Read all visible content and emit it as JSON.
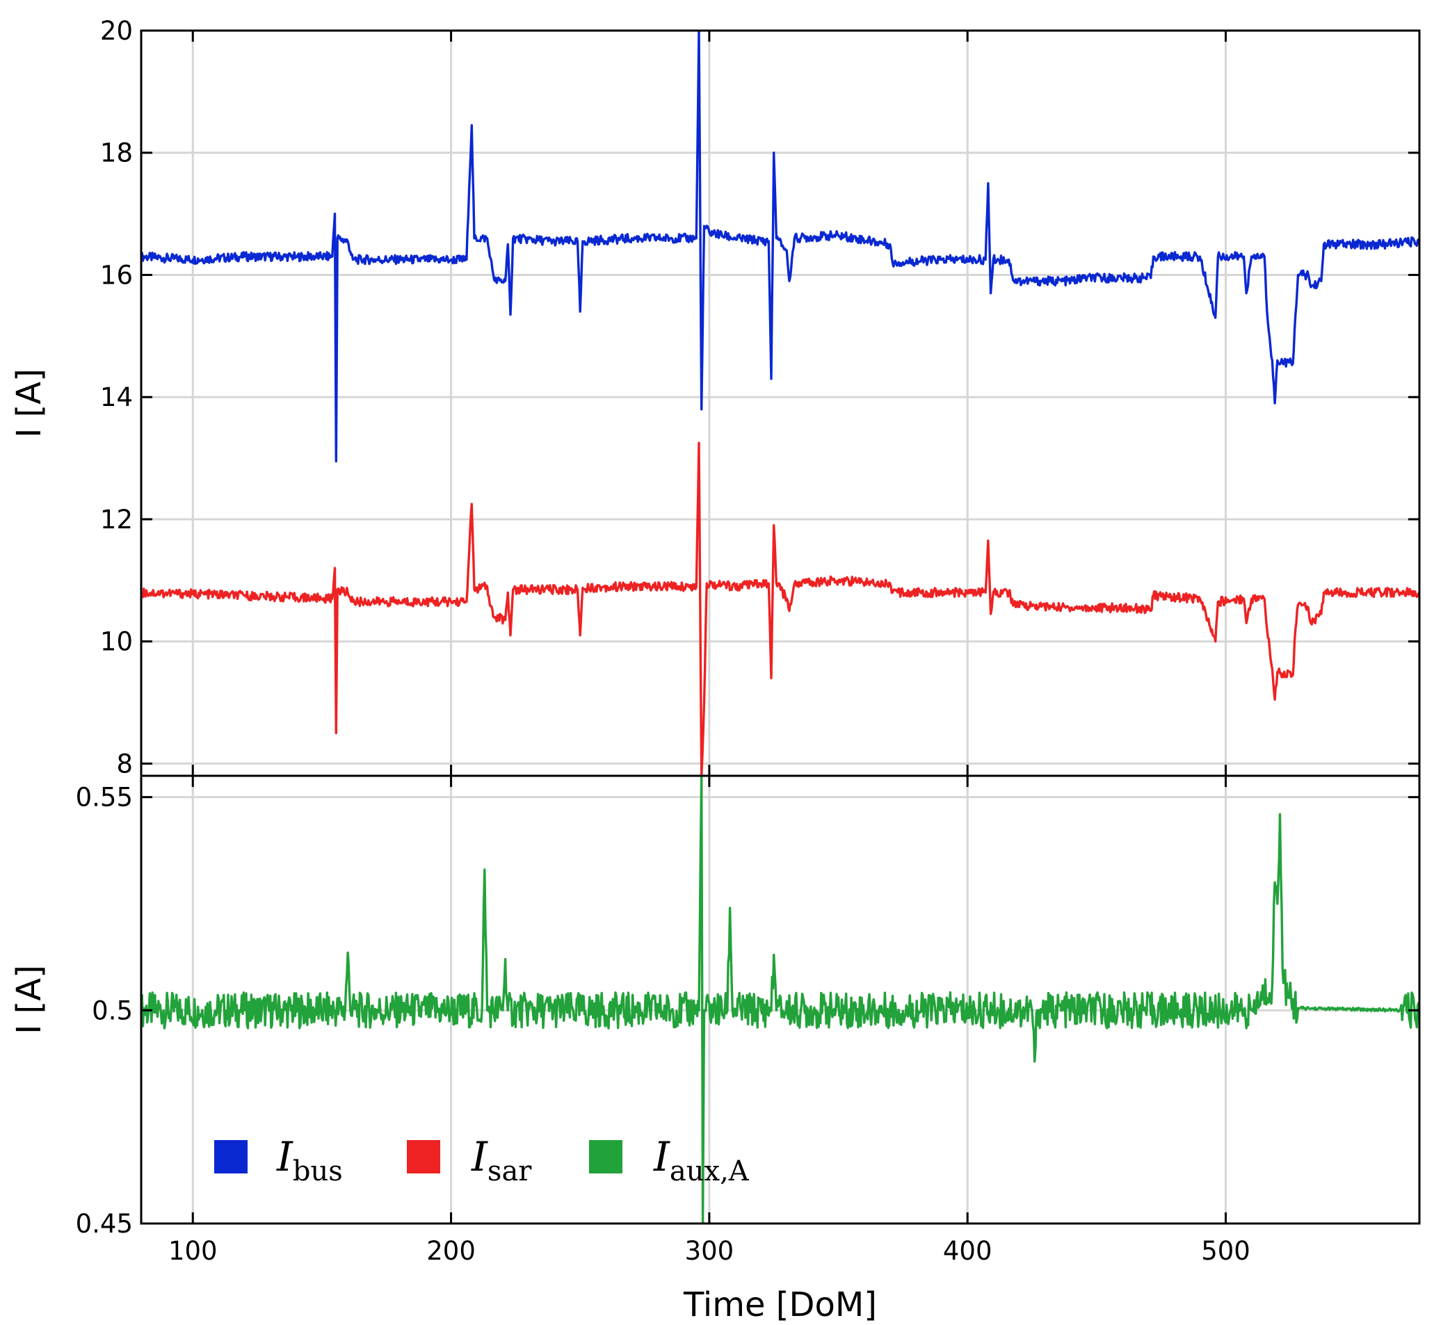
{
  "chart_data": [
    {
      "type": "line",
      "panel": "top",
      "ylabel": "I [A]",
      "ylim": [
        7.8,
        20
      ],
      "yticks": [
        "8",
        "10",
        "12",
        "14",
        "16",
        "18",
        "20"
      ],
      "xlim": [
        80,
        575
      ],
      "grid": true,
      "series": [
        {
          "id": "bus",
          "color": "#0a28d2",
          "points": [
            [
              80,
              16.3
            ],
            [
              100,
              16.25
            ],
            [
              120,
              16.3
            ],
            [
              140,
              16.3
            ],
            [
              150,
              16.3
            ],
            [
              154,
              16.3
            ],
            [
              155,
              17.0
            ],
            [
              155.5,
              12.95
            ],
            [
              156,
              16.6
            ],
            [
              160,
              16.55
            ],
            [
              162,
              16.25
            ],
            [
              180,
              16.25
            ],
            [
              200,
              16.25
            ],
            [
              206,
              16.25
            ],
            [
              207,
              17.4
            ],
            [
              208,
              18.45
            ],
            [
              209,
              16.6
            ],
            [
              214,
              16.6
            ],
            [
              215,
              16.3
            ],
            [
              217,
              15.9
            ],
            [
              221,
              15.9
            ],
            [
              222,
              16.5
            ],
            [
              223,
              15.35
            ],
            [
              224,
              16.6
            ],
            [
              240,
              16.55
            ],
            [
              249,
              16.55
            ],
            [
              250,
              15.4
            ],
            [
              251,
              16.55
            ],
            [
              270,
              16.6
            ],
            [
              295,
              16.6
            ],
            [
              296,
              20
            ],
            [
              297,
              13.8
            ],
            [
              298,
              16.8
            ],
            [
              300,
              16.7
            ],
            [
              310,
              16.6
            ],
            [
              323,
              16.55
            ],
            [
              324,
              14.3
            ],
            [
              325,
              18.0
            ],
            [
              326,
              16.6
            ],
            [
              330,
              16.4
            ],
            [
              331,
              15.9
            ],
            [
              333,
              16.6
            ],
            [
              350,
              16.65
            ],
            [
              370,
              16.5
            ],
            [
              371,
              16.2
            ],
            [
              390,
              16.25
            ],
            [
              407,
              16.25
            ],
            [
              408,
              17.5
            ],
            [
              409,
              15.7
            ],
            [
              410,
              16.25
            ],
            [
              416,
              16.25
            ],
            [
              418,
              15.9
            ],
            [
              440,
              15.9
            ],
            [
              445,
              15.95
            ],
            [
              465,
              15.95
            ],
            [
              471,
              15.95
            ],
            [
              472,
              16.3
            ],
            [
              490,
              16.3
            ],
            [
              496,
              15.3
            ],
            [
              497,
              16.3
            ],
            [
              507,
              16.3
            ],
            [
              508,
              15.7
            ],
            [
              510,
              16.3
            ],
            [
              515,
              16.3
            ],
            [
              516,
              15.4
            ],
            [
              518,
              14.6
            ],
            [
              519,
              13.9
            ],
            [
              520,
              14.6
            ],
            [
              526,
              14.55
            ],
            [
              527,
              15.35
            ],
            [
              528,
              16.0
            ],
            [
              532,
              16.0
            ],
            [
              533,
              15.8
            ],
            [
              537,
              15.9
            ],
            [
              538,
              16.5
            ],
            [
              560,
              16.5
            ],
            [
              575,
              16.55
            ]
          ]
        },
        {
          "id": "sar",
          "color": "#ee2222",
          "points": [
            [
              80,
              10.8
            ],
            [
              100,
              10.78
            ],
            [
              120,
              10.75
            ],
            [
              140,
              10.72
            ],
            [
              154,
              10.7
            ],
            [
              155,
              11.2
            ],
            [
              155.5,
              8.5
            ],
            [
              156,
              10.85
            ],
            [
              160,
              10.8
            ],
            [
              162,
              10.65
            ],
            [
              180,
              10.65
            ],
            [
              206,
              10.65
            ],
            [
              207,
              11.45
            ],
            [
              208,
              12.25
            ],
            [
              209,
              10.85
            ],
            [
              214,
              10.9
            ],
            [
              215,
              10.6
            ],
            [
              217,
              10.4
            ],
            [
              221,
              10.35
            ],
            [
              222,
              10.8
            ],
            [
              223,
              10.1
            ],
            [
              224,
              10.85
            ],
            [
              249,
              10.85
            ],
            [
              250,
              10.1
            ],
            [
              251,
              10.88
            ],
            [
              270,
              10.9
            ],
            [
              295,
              10.9
            ],
            [
              296,
              13.25
            ],
            [
              297,
              7.8
            ],
            [
              298,
              9.0
            ],
            [
              299,
              10.95
            ],
            [
              310,
              10.9
            ],
            [
              323,
              10.95
            ],
            [
              324,
              9.4
            ],
            [
              325,
              11.9
            ],
            [
              326,
              10.95
            ],
            [
              330,
              10.7
            ],
            [
              331,
              10.5
            ],
            [
              333,
              10.95
            ],
            [
              350,
              11.0
            ],
            [
              370,
              10.95
            ],
            [
              371,
              10.8
            ],
            [
              390,
              10.8
            ],
            [
              407,
              10.8
            ],
            [
              408,
              11.65
            ],
            [
              409,
              10.45
            ],
            [
              410,
              10.8
            ],
            [
              416,
              10.8
            ],
            [
              418,
              10.6
            ],
            [
              440,
              10.55
            ],
            [
              465,
              10.55
            ],
            [
              471,
              10.5
            ],
            [
              472,
              10.75
            ],
            [
              490,
              10.7
            ],
            [
              496,
              10.0
            ],
            [
              497,
              10.65
            ],
            [
              507,
              10.7
            ],
            [
              508,
              10.3
            ],
            [
              510,
              10.7
            ],
            [
              515,
              10.7
            ],
            [
              516,
              10.2
            ],
            [
              518,
              9.55
            ],
            [
              519,
              9.05
            ],
            [
              520,
              9.5
            ],
            [
              526,
              9.45
            ],
            [
              527,
              10.2
            ],
            [
              528,
              10.6
            ],
            [
              532,
              10.55
            ],
            [
              533,
              10.3
            ],
            [
              537,
              10.45
            ],
            [
              538,
              10.8
            ],
            [
              560,
              10.8
            ],
            [
              575,
              10.8
            ]
          ]
        }
      ]
    },
    {
      "type": "line",
      "panel": "bottom",
      "ylabel": "I [A]",
      "ylim": [
        0.45,
        0.555
      ],
      "yticks": [
        "0.45",
        "0.5",
        "0.55"
      ],
      "xlabel": "Time [DoM]",
      "xlim": [
        80,
        575
      ],
      "xticks": [
        "100",
        "200",
        "300",
        "400",
        "500"
      ],
      "grid": true,
      "series": [
        {
          "id": "aux",
          "color": "#22a23a",
          "points": [
            [
              80,
              0.5
            ],
            [
              120,
              0.5
            ],
            [
              159,
              0.5
            ],
            [
              160,
              0.5135
            ],
            [
              161,
              0.5
            ],
            [
              212,
              0.5
            ],
            [
              213,
              0.533
            ],
            [
              214,
              0.5
            ],
            [
              220,
              0.5
            ],
            [
              221,
              0.512
            ],
            [
              222,
              0.5
            ],
            [
              296,
              0.5
            ],
            [
              297,
              0.555
            ],
            [
              297.5,
              0.45
            ],
            [
              298,
              0.5
            ],
            [
              307,
              0.5
            ],
            [
              308,
              0.524
            ],
            [
              309,
              0.5
            ],
            [
              324,
              0.5
            ],
            [
              325,
              0.513
            ],
            [
              326,
              0.5
            ],
            [
              425,
              0.5
            ],
            [
              426,
              0.488
            ],
            [
              427,
              0.5
            ],
            [
              510,
              0.5
            ],
            [
              518,
              0.506
            ],
            [
              519,
              0.53
            ],
            [
              520,
              0.525
            ],
            [
              521,
              0.546
            ],
            [
              522,
              0.51
            ],
            [
              524,
              0.503
            ],
            [
              528,
              0.5005
            ],
            [
              545,
              0.5003
            ],
            [
              570,
              0.5
            ],
            [
              575,
              0.5
            ]
          ]
        }
      ]
    }
  ],
  "legend": {
    "items": [
      {
        "main": "I",
        "sub": "bus",
        "color": "#0a28d2"
      },
      {
        "main": "I",
        "sub": "sar",
        "color": "#ee2222"
      },
      {
        "main": "I",
        "sub": "aux,A",
        "color": "#22a23a"
      }
    ]
  }
}
